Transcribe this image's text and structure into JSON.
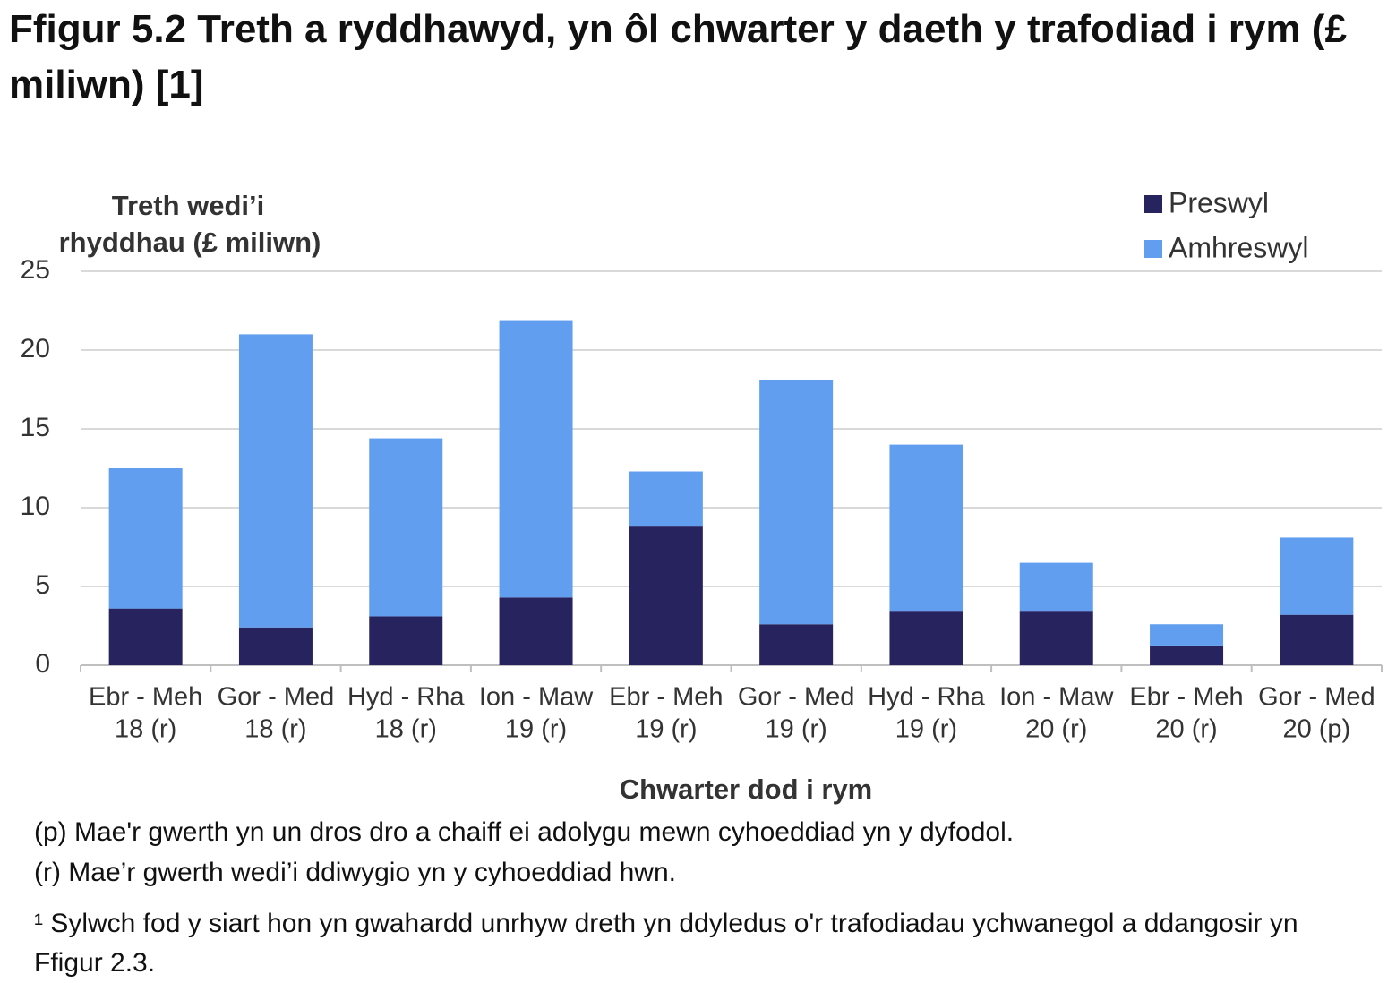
{
  "chart_data": {
    "type": "stacked_bar",
    "title": "Ffigur 5.2  Treth a ryddhawyd, yn ôl chwarter y daeth y trafodiad i rym (£ miliwn) [1]",
    "y_label": [
      "Treth wedi’i",
      "rhyddhau (£ miliwn)"
    ],
    "x_label": "Chwarter dod i rym",
    "categories": [
      [
        "Ebr - Meh",
        "18 (r)"
      ],
      [
        "Gor - Med",
        "18 (r)"
      ],
      [
        "Hyd - Rha",
        "18 (r)"
      ],
      [
        "Ion - Maw",
        "19 (r)"
      ],
      [
        "Ebr - Meh",
        "19 (r)"
      ],
      [
        "Gor - Med",
        "19 (r)"
      ],
      [
        "Hyd - Rha",
        "19 (r)"
      ],
      [
        "Ion - Maw",
        "20 (r)"
      ],
      [
        "Ebr - Meh",
        "20 (r)"
      ],
      [
        "Gor - Med",
        "20 (p)"
      ]
    ],
    "series": [
      {
        "name": "Preswyl",
        "color": "#26235f",
        "values": [
          3.6,
          2.4,
          3.1,
          4.3,
          8.8,
          2.6,
          3.4,
          3.4,
          1.2,
          3.2
        ]
      },
      {
        "name": "Amhreswyl",
        "color": "#619ef0",
        "values": [
          8.9,
          18.6,
          11.3,
          17.6,
          3.5,
          15.5,
          10.6,
          3.1,
          1.4,
          4.9
        ]
      }
    ],
    "ylim": [
      0,
      25
    ],
    "yticks": [
      0,
      5,
      10,
      15,
      20,
      25
    ],
    "grid": true,
    "legend": "top-right",
    "notes": [
      "(p) Mae'r gwerth yn un dros dro a chaiff ei adolygu mewn cyhoeddiad yn y dyfodol.",
      "(r) Mae’r gwerth wedi’i ddiwygio yn y cyhoeddiad hwn.",
      "¹ Sylwch fod y siart hon yn gwahardd unrhyw dreth yn ddyledus o'r trafodiadau ychwanegol a ddangosir yn Ffigur 2.3."
    ]
  }
}
